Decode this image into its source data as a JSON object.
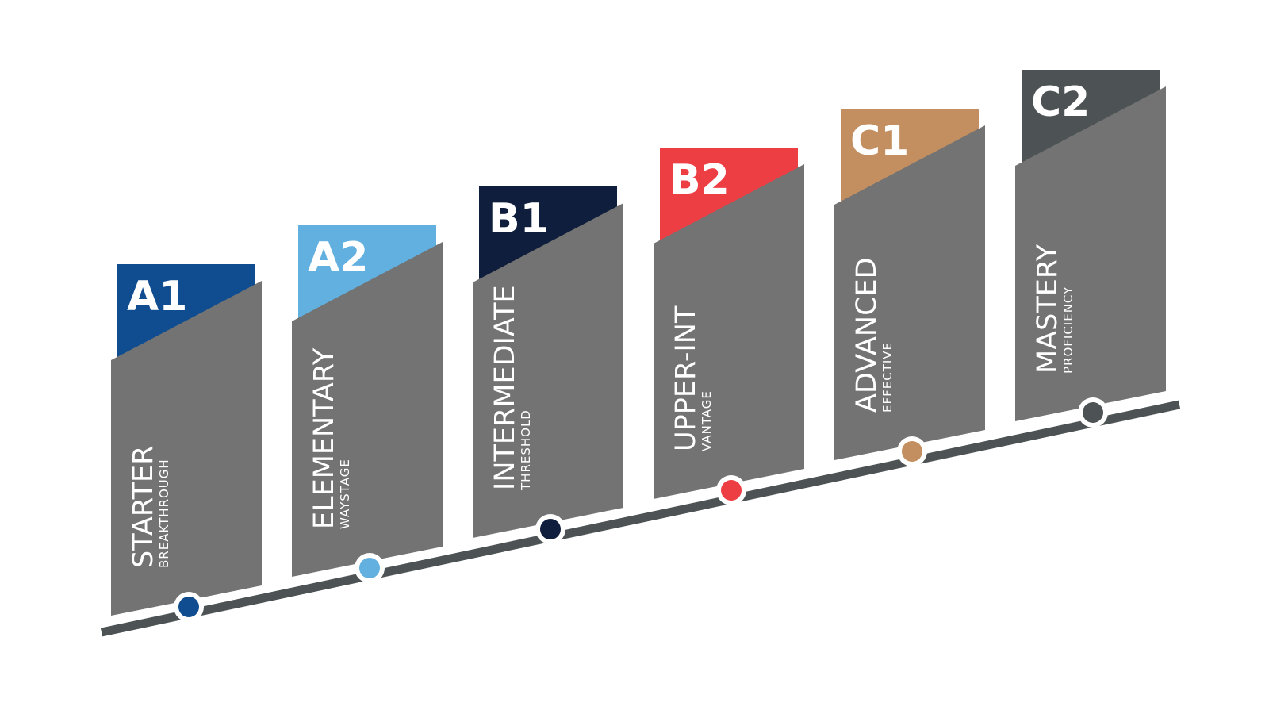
{
  "colors": {
    "panel": "#737373",
    "timeline": "#4d5354",
    "dot_ring": "#ffffff"
  },
  "levels": [
    {
      "code": "A1",
      "name": "STARTER",
      "subtitle": "BREAKTHROUGH",
      "color": "#104d90"
    },
    {
      "code": "A2",
      "name": "ELEMENTARY",
      "subtitle": "WAYSTAGE",
      "color": "#61b0e0"
    },
    {
      "code": "B1",
      "name": "INTERMEDIATE",
      "subtitle": "THRESHOLD",
      "color": "#0f1e3c"
    },
    {
      "code": "B2",
      "name": "UPPER-INT",
      "subtitle": "VANTAGE",
      "color": "#ed3e44"
    },
    {
      "code": "C1",
      "name": "ADVANCED",
      "subtitle": "EFFECTIVE",
      "color": "#c38f60"
    },
    {
      "code": "C2",
      "name": "MASTERY",
      "subtitle": "PROFICIENCY",
      "color": "#4d5354"
    }
  ]
}
